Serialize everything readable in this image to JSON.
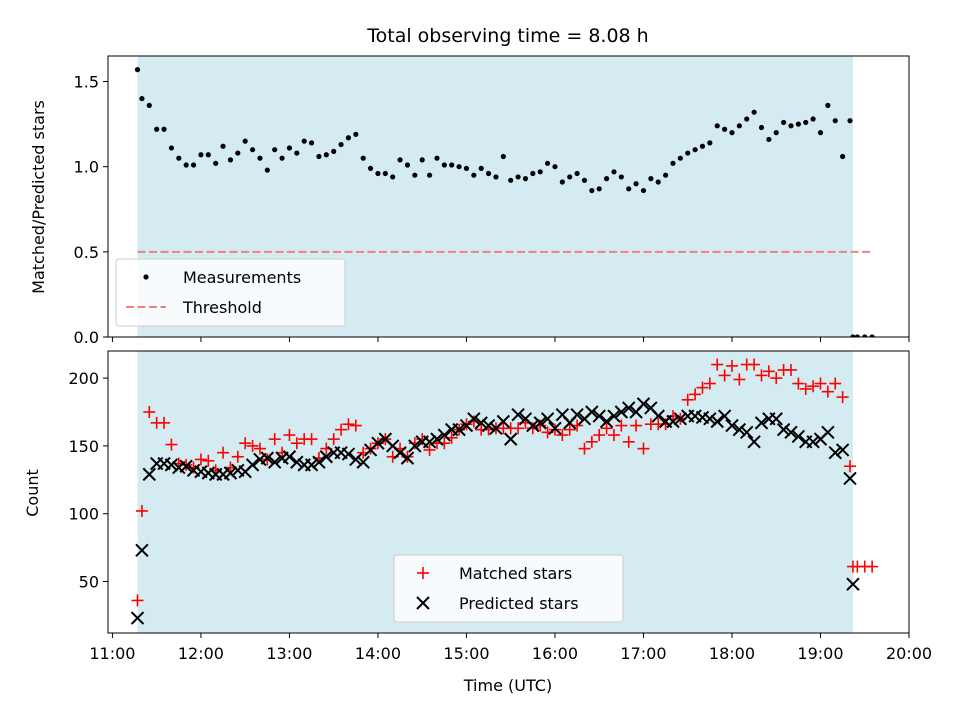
{
  "figure": {
    "title": "Total observing time = 8.08 h"
  },
  "chart_data": [
    {
      "type": "scatter",
      "ylabel": "Matched/Predicted stars",
      "xlabel": "",
      "xlim": [
        "10:57",
        "20:00"
      ],
      "ylim": [
        0,
        1.65
      ],
      "yticks": [
        "0.0",
        "0.5",
        "1.0",
        "1.5"
      ],
      "shaded_interval": [
        "11:17",
        "19:22"
      ],
      "legend": {
        "position": "lower-left",
        "entries": [
          "Measurements",
          "Threshold"
        ]
      },
      "series": [
        {
          "name": "Measurements",
          "marker": "dot",
          "color": "#000000",
          "x": [
            "11:17",
            "11:20",
            "11:25",
            "11:30",
            "11:35",
            "11:40",
            "11:45",
            "11:50",
            "11:55",
            "12:00",
            "12:05",
            "12:10",
            "12:15",
            "12:20",
            "12:25",
            "12:30",
            "12:35",
            "12:40",
            "12:45",
            "12:50",
            "12:55",
            "13:00",
            "13:05",
            "13:10",
            "13:15",
            "13:20",
            "13:25",
            "13:30",
            "13:35",
            "13:40",
            "13:45",
            "13:50",
            "13:55",
            "14:00",
            "14:05",
            "14:10",
            "14:15",
            "14:20",
            "14:25",
            "14:30",
            "14:35",
            "14:40",
            "14:45",
            "14:50",
            "14:55",
            "15:00",
            "15:05",
            "15:10",
            "15:15",
            "15:20",
            "15:25",
            "15:30",
            "15:35",
            "15:40",
            "15:45",
            "15:50",
            "15:55",
            "16:00",
            "16:05",
            "16:10",
            "16:15",
            "16:20",
            "16:25",
            "16:30",
            "16:35",
            "16:40",
            "16:45",
            "16:50",
            "16:55",
            "17:00",
            "17:05",
            "17:10",
            "17:15",
            "17:20",
            "17:25",
            "17:30",
            "17:35",
            "17:40",
            "17:45",
            "17:50",
            "17:55",
            "18:00",
            "18:05",
            "18:10",
            "18:15",
            "18:20",
            "18:25",
            "18:30",
            "18:35",
            "18:40",
            "18:45",
            "18:50",
            "18:55",
            "19:00",
            "19:05",
            "19:10",
            "19:15",
            "19:20",
            "19:22",
            "19:25",
            "19:30",
            "19:35"
          ],
          "y": [
            1.57,
            1.4,
            1.36,
            1.22,
            1.22,
            1.11,
            1.05,
            1.01,
            1.01,
            1.07,
            1.07,
            1.02,
            1.12,
            1.04,
            1.08,
            1.15,
            1.1,
            1.05,
            0.98,
            1.1,
            1.05,
            1.11,
            1.08,
            1.15,
            1.14,
            1.06,
            1.07,
            1.09,
            1.13,
            1.17,
            1.19,
            1.05,
            0.99,
            0.96,
            0.96,
            0.94,
            1.04,
            1.01,
            0.95,
            1.04,
            0.95,
            1.05,
            1.01,
            1.01,
            1.0,
            0.99,
            0.95,
            0.99,
            0.96,
            0.94,
            1.06,
            0.92,
            0.94,
            0.93,
            0.96,
            0.97,
            1.02,
            1.0,
            0.91,
            0.94,
            0.96,
            0.92,
            0.86,
            0.87,
            0.93,
            0.97,
            0.94,
            0.87,
            0.9,
            0.86,
            0.93,
            0.91,
            0.95,
            1.02,
            1.05,
            1.08,
            1.1,
            1.12,
            1.14,
            1.24,
            1.22,
            1.2,
            1.24,
            1.28,
            1.32,
            1.23,
            1.16,
            1.2,
            1.26,
            1.24,
            1.25,
            1.26,
            1.28,
            1.2,
            1.36,
            1.27,
            1.06,
            1.27,
            0.0,
            0.0,
            0.0,
            0.0
          ]
        },
        {
          "name": "Threshold",
          "marker": "dashed-line",
          "color": "#f08080",
          "x": [
            "11:17",
            "19:35"
          ],
          "y": [
            0.5,
            0.5
          ]
        }
      ]
    },
    {
      "type": "scatter",
      "ylabel": "Count",
      "xlabel": "Time (UTC)",
      "xlim": [
        "10:57",
        "20:00"
      ],
      "ylim": [
        12,
        220
      ],
      "yticks": [
        "50",
        "100",
        "150",
        "200"
      ],
      "xticks": [
        "11:00",
        "12:00",
        "13:00",
        "14:00",
        "15:00",
        "16:00",
        "17:00",
        "18:00",
        "19:00",
        "20:00"
      ],
      "shaded_interval": [
        "11:17",
        "19:22"
      ],
      "legend": {
        "position": "lower-center",
        "entries": [
          "Matched stars",
          "Predicted stars"
        ]
      },
      "series": [
        {
          "name": "Matched stars",
          "marker": "plus",
          "color": "#ff0000",
          "x": [
            "11:17",
            "11:20",
            "11:25",
            "11:30",
            "11:35",
            "11:40",
            "11:45",
            "11:50",
            "11:55",
            "12:00",
            "12:05",
            "12:10",
            "12:15",
            "12:20",
            "12:25",
            "12:30",
            "12:35",
            "12:40",
            "12:45",
            "12:50",
            "12:55",
            "13:00",
            "13:05",
            "13:10",
            "13:15",
            "13:20",
            "13:25",
            "13:30",
            "13:35",
            "13:40",
            "13:45",
            "13:50",
            "13:55",
            "14:00",
            "14:05",
            "14:10",
            "14:15",
            "14:20",
            "14:25",
            "14:30",
            "14:35",
            "14:40",
            "14:45",
            "14:50",
            "14:55",
            "15:00",
            "15:05",
            "15:10",
            "15:15",
            "15:20",
            "15:25",
            "15:30",
            "15:35",
            "15:40",
            "15:45",
            "15:50",
            "15:55",
            "16:00",
            "16:05",
            "16:10",
            "16:15",
            "16:20",
            "16:25",
            "16:30",
            "16:35",
            "16:40",
            "16:45",
            "16:50",
            "16:55",
            "17:00",
            "17:05",
            "17:10",
            "17:15",
            "17:20",
            "17:25",
            "17:30",
            "17:35",
            "17:40",
            "17:45",
            "17:50",
            "17:55",
            "18:00",
            "18:05",
            "18:10",
            "18:15",
            "18:20",
            "18:25",
            "18:30",
            "18:35",
            "18:40",
            "18:45",
            "18:50",
            "18:55",
            "19:00",
            "19:05",
            "19:10",
            "19:15",
            "19:20",
            "19:22",
            "19:25",
            "19:30",
            "19:35"
          ],
          "y": [
            36,
            102,
            175,
            167,
            167,
            151,
            137,
            136,
            134,
            140,
            139,
            132,
            145,
            134,
            142,
            152,
            150,
            148,
            140,
            155,
            145,
            158,
            152,
            155,
            155,
            141,
            148,
            155,
            162,
            166,
            165,
            145,
            148,
            152,
            155,
            142,
            148,
            142,
            152,
            155,
            147,
            152,
            152,
            156,
            162,
            166,
            168,
            162,
            162,
            163,
            163,
            163,
            163,
            167,
            163,
            165,
            160,
            162,
            158,
            162,
            165,
            148,
            153,
            158,
            163,
            158,
            165,
            153,
            165,
            148,
            166,
            166,
            166,
            172,
            170,
            184,
            188,
            193,
            196,
            210,
            202,
            209,
            199,
            210,
            210,
            202,
            205,
            200,
            206,
            206,
            196,
            192,
            194,
            196,
            190,
            196,
            186,
            135,
            61,
            61,
            61,
            61
          ]
        },
        {
          "name": "Predicted stars",
          "marker": "x",
          "color": "#000000",
          "x": [
            "11:17",
            "11:20",
            "11:25",
            "11:30",
            "11:35",
            "11:40",
            "11:45",
            "11:50",
            "11:55",
            "12:00",
            "12:05",
            "12:10",
            "12:15",
            "12:20",
            "12:25",
            "12:30",
            "12:35",
            "12:40",
            "12:45",
            "12:50",
            "12:55",
            "13:00",
            "13:05",
            "13:10",
            "13:15",
            "13:20",
            "13:25",
            "13:30",
            "13:35",
            "13:40",
            "13:45",
            "13:50",
            "13:55",
            "14:00",
            "14:05",
            "14:10",
            "14:15",
            "14:20",
            "14:25",
            "14:30",
            "14:35",
            "14:40",
            "14:45",
            "14:50",
            "14:55",
            "15:00",
            "15:05",
            "15:10",
            "15:15",
            "15:20",
            "15:25",
            "15:30",
            "15:35",
            "15:40",
            "15:45",
            "15:50",
            "15:55",
            "16:00",
            "16:05",
            "16:10",
            "16:15",
            "16:20",
            "16:25",
            "16:30",
            "16:35",
            "16:40",
            "16:45",
            "16:50",
            "16:55",
            "17:00",
            "17:05",
            "17:10",
            "17:15",
            "17:20",
            "17:25",
            "17:30",
            "17:35",
            "17:40",
            "17:45",
            "17:50",
            "17:55",
            "18:00",
            "18:05",
            "18:10",
            "18:15",
            "18:20",
            "18:25",
            "18:30",
            "18:35",
            "18:40",
            "18:45",
            "18:50",
            "18:55",
            "19:00",
            "19:05",
            "19:10",
            "19:15",
            "19:20",
            "19:22"
          ],
          "y": [
            23,
            73,
            129,
            137,
            137,
            136,
            134,
            135,
            132,
            131,
            130,
            129,
            129,
            130,
            132,
            131,
            136,
            140,
            141,
            138,
            141,
            142,
            138,
            136,
            136,
            138,
            142,
            145,
            145,
            144,
            140,
            138,
            147,
            152,
            155,
            150,
            145,
            141,
            150,
            153,
            153,
            155,
            158,
            162,
            162,
            165,
            170,
            167,
            165,
            163,
            168,
            155,
            173,
            170,
            165,
            167,
            170,
            163,
            173,
            167,
            173,
            170,
            175,
            172,
            168,
            172,
            175,
            178,
            175,
            181,
            178,
            172,
            168,
            168,
            170,
            172,
            172,
            171,
            170,
            168,
            172,
            165,
            162,
            160,
            153,
            167,
            170,
            170,
            162,
            160,
            157,
            153,
            153,
            155,
            160,
            145,
            147,
            126,
            48
          ]
        }
      ]
    }
  ]
}
